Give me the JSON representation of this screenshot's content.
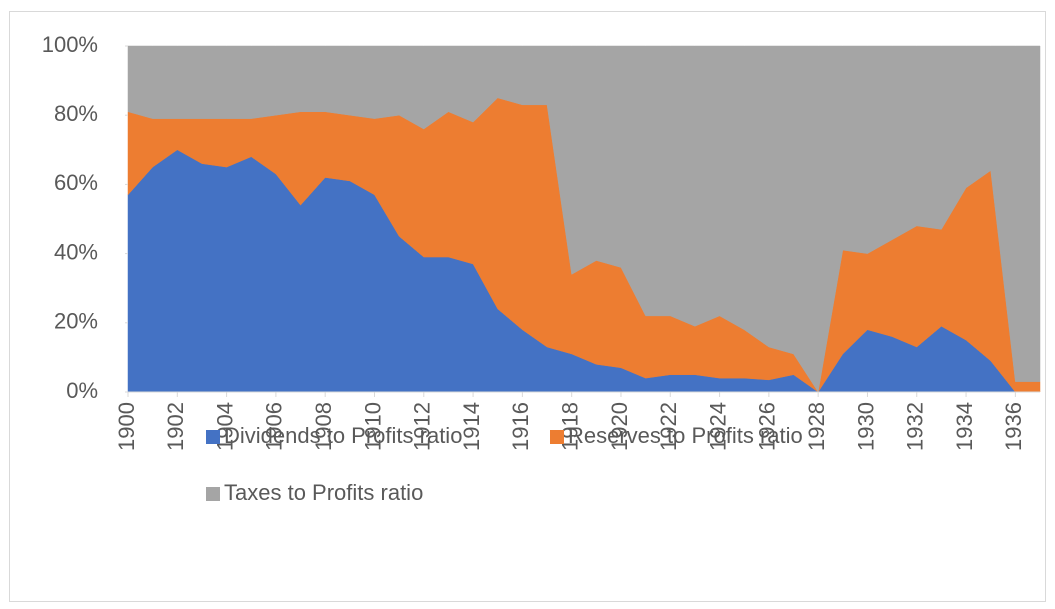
{
  "chart_data": {
    "type": "stacked_area",
    "x": [
      1900,
      1901,
      1902,
      1903,
      1904,
      1905,
      1906,
      1907,
      1908,
      1909,
      1910,
      1911,
      1912,
      1913,
      1914,
      1915,
      1916,
      1917,
      1918,
      1919,
      1920,
      1921,
      1922,
      1923,
      1924,
      1925,
      1926,
      1927,
      1928,
      1929,
      1930,
      1931,
      1932,
      1933,
      1934,
      1935,
      1936,
      1937
    ],
    "xlim": [
      1900,
      1937
    ],
    "xticks": [
      1900,
      1902,
      1904,
      1906,
      1908,
      1910,
      1912,
      1914,
      1916,
      1918,
      1920,
      1922,
      1924,
      1926,
      1928,
      1930,
      1932,
      1934,
      1936
    ],
    "ylim": [
      0,
      100
    ],
    "yticks": [
      {
        "value": 0,
        "label": "0%"
      },
      {
        "value": 20,
        "label": "20%"
      },
      {
        "value": 40,
        "label": "40%"
      },
      {
        "value": 60,
        "label": "60%"
      },
      {
        "value": 80,
        "label": "80%"
      },
      {
        "value": 100,
        "label": "100%"
      }
    ],
    "series": [
      {
        "name": "Dividends to Profits ratio",
        "color": "#4472c4",
        "values": [
          57,
          65,
          70,
          66,
          65,
          68,
          63,
          54,
          62,
          61,
          57,
          45,
          39,
          39,
          37,
          24,
          18,
          13,
          11,
          8,
          7,
          4,
          5,
          5,
          4,
          4,
          3.5,
          5,
          0,
          11,
          18,
          16,
          13,
          19,
          15,
          9,
          0,
          0
        ]
      },
      {
        "name": "Reserves to Profits ratio",
        "color": "#ed7d31",
        "values": [
          24,
          14,
          9,
          13,
          14,
          11,
          17,
          27,
          19,
          19,
          22,
          35,
          37,
          42,
          41,
          61,
          65,
          70,
          23,
          30,
          29,
          18,
          17,
          14,
          18,
          14,
          9.5,
          6,
          0,
          30,
          22,
          28,
          35,
          28,
          44,
          55,
          3,
          3
        ]
      },
      {
        "name": "Taxes to Profits ratio",
        "color": "#a5a5a5",
        "values": [
          19,
          21,
          21,
          21,
          21,
          21,
          20,
          19,
          19,
          20,
          21,
          20,
          24,
          19,
          22,
          15,
          17,
          17,
          66,
          62,
          64,
          78,
          78,
          81,
          78,
          82,
          87,
          89,
          100,
          59,
          60,
          56,
          52,
          53,
          41,
          36,
          97,
          97
        ]
      }
    ]
  }
}
